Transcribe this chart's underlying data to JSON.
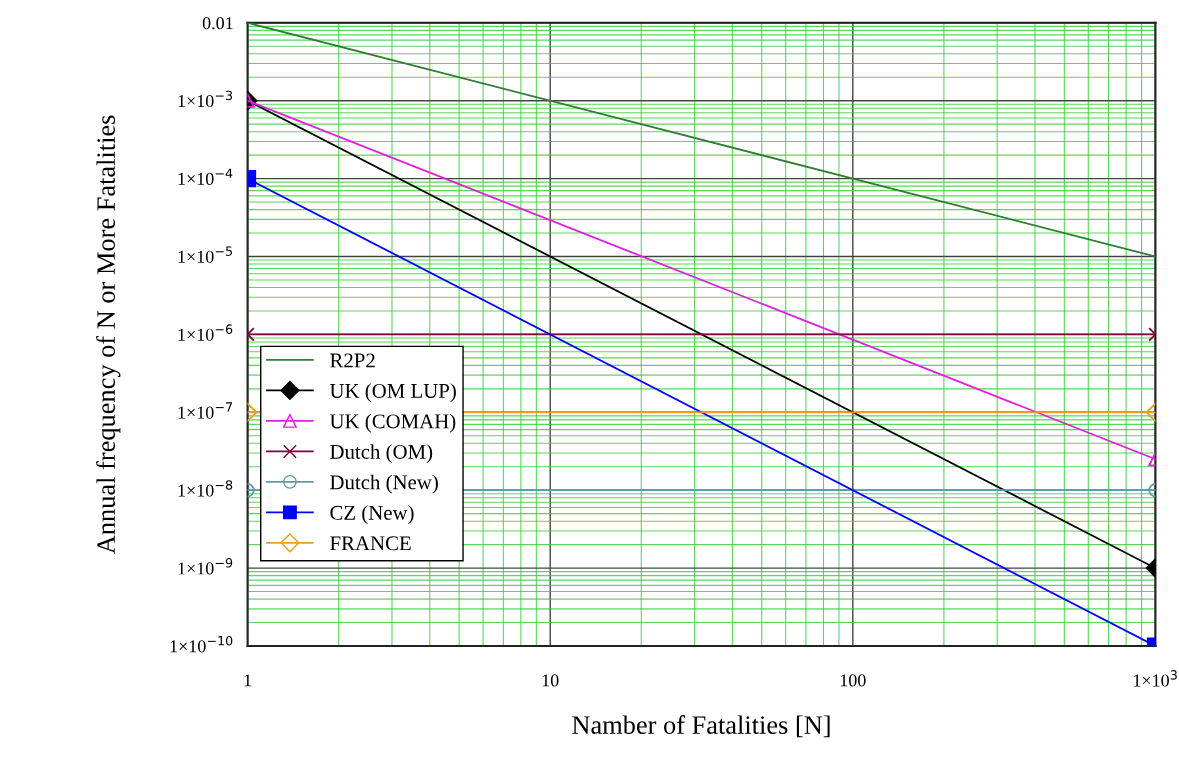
{
  "chart_data": {
    "type": "line",
    "xlabel": "Namber of Fatalities [N]",
    "ylabel": "Annual frequency of N or More Fatalities",
    "x": [
      1,
      1000
    ],
    "log": "xy",
    "grid": true,
    "legend": "lower left",
    "xlim": [
      1,
      1000
    ],
    "xticks": [
      1,
      {
        "value": 2,
        "label": null
      },
      {
        "value": 3,
        "label": null
      },
      {
        "value": 4,
        "label": null
      },
      {
        "value": 5,
        "label": null
      },
      {
        "value": 6,
        "label": null
      },
      {
        "value": 7,
        "label": null
      },
      {
        "value": 8,
        "label": null
      },
      {
        "value": 9,
        "label": null
      },
      10,
      {
        "value": 20,
        "label": null
      },
      {
        "value": 30,
        "label": null
      },
      {
        "value": 40,
        "label": null
      },
      {
        "value": 50,
        "label": null
      },
      {
        "value": 60,
        "label": null
      },
      {
        "value": 70,
        "label": null
      },
      {
        "value": 80,
        "label": null
      },
      {
        "value": 90,
        "label": null
      },
      100,
      {
        "value": 200,
        "label": null
      },
      {
        "value": 300,
        "label": null
      },
      {
        "value": 400,
        "label": null
      },
      {
        "value": 500,
        "label": null
      },
      {
        "value": 600,
        "label": null
      },
      {
        "value": 700,
        "label": null
      },
      {
        "value": 800,
        "label": null
      },
      {
        "value": 900,
        "label": null
      },
      {
        "value": 1000,
        "label": "1×10$^{3}$"
      }
    ],
    "ylim": [
      1e-10,
      0.01
    ],
    "yticks": [
      {
        "value": 1e-10,
        "label": "1×10$^{−10}$"
      },
      {
        "value": 2e-10,
        "label": null
      },
      {
        "value": 3e-10,
        "label": null
      },
      {
        "value": 4e-10,
        "label": null
      },
      {
        "value": 5e-10,
        "label": null
      },
      {
        "value": 6e-10,
        "label": null
      },
      {
        "value": 7e-10,
        "label": null
      },
      {
        "value": 8e-10,
        "label": null
      },
      {
        "value": 9e-10,
        "label": null
      },
      {
        "value": 1e-09,
        "label": "1×10$^{−9}$"
      },
      {
        "value": 2e-09,
        "label": null
      },
      {
        "value": 3e-09,
        "label": null
      },
      {
        "value": 4e-09,
        "label": null
      },
      {
        "value": 5e-09,
        "label": null
      },
      {
        "value": 6e-09,
        "label": null
      },
      {
        "value": 7e-09,
        "label": null
      },
      {
        "value": 8e-09,
        "label": null
      },
      {
        "value": 9e-09,
        "label": null
      },
      {
        "value": 1e-08,
        "label": "1×10$^{−8}$"
      },
      {
        "value": 2e-08,
        "label": null
      },
      {
        "value": 3e-08,
        "label": null
      },
      {
        "value": 4e-08,
        "label": null
      },
      {
        "value": 5e-08,
        "label": null
      },
      {
        "value": 6e-08,
        "label": null
      },
      {
        "value": 7e-08,
        "label": null
      },
      {
        "value": 8e-08,
        "label": null
      },
      {
        "value": 9e-08,
        "label": null
      },
      {
        "value": 1e-07,
        "label": "1×10$^{−7}$"
      },
      {
        "value": 2e-07,
        "label": null
      },
      {
        "value": 3e-07,
        "label": null
      },
      {
        "value": 4e-07,
        "label": null
      },
      {
        "value": 5e-07,
        "label": null
      },
      {
        "value": 6e-07,
        "label": null
      },
      {
        "value": 7e-07,
        "label": null
      },
      {
        "value": 8e-07,
        "label": null
      },
      {
        "value": 9e-07,
        "label": null
      },
      {
        "value": 1e-06,
        "label": "1×10$^{−6}$"
      },
      {
        "value": 2e-06,
        "label": null
      },
      {
        "value": 3e-06,
        "label": null
      },
      {
        "value": 4e-06,
        "label": null
      },
      {
        "value": 5e-06,
        "label": null
      },
      {
        "value": 6e-06,
        "label": null
      },
      {
        "value": 7e-06,
        "label": null
      },
      {
        "value": 8e-06,
        "label": null
      },
      {
        "value": 9e-06,
        "label": null
      },
      {
        "value": 1e-05,
        "label": "1×10$^{−5}$"
      },
      {
        "value": 2e-05,
        "label": null
      },
      {
        "value": 3e-05,
        "label": null
      },
      {
        "value": 4e-05,
        "label": null
      },
      {
        "value": 5e-05,
        "label": null
      },
      {
        "value": 6e-05,
        "label": null
      },
      {
        "value": 7e-05,
        "label": null
      },
      {
        "value": 8e-05,
        "label": null
      },
      {
        "value": 9e-05,
        "label": null
      },
      {
        "value": 0.0001,
        "label": "1×10$^{−4}$"
      },
      {
        "value": 0.0002,
        "label": null
      },
      {
        "value": 0.0003,
        "label": null
      },
      {
        "value": 0.0004,
        "label": null
      },
      {
        "value": 0.0005,
        "label": null
      },
      {
        "value": 0.0006,
        "label": null
      },
      {
        "value": 0.0007,
        "label": null
      },
      {
        "value": 0.0008,
        "label": null
      },
      {
        "value": 0.0009,
        "label": null
      },
      {
        "value": 0.001,
        "label": "1×10$^{−3}$"
      },
      {
        "value": 0.002,
        "label": null
      },
      {
        "value": 0.003,
        "label": null
      },
      {
        "value": 0.004,
        "label": null
      },
      {
        "value": 0.005,
        "label": null
      },
      {
        "value": 0.006,
        "label": null
      },
      {
        "value": 0.007,
        "label": null
      },
      {
        "value": 0.008,
        "label": null
      },
      {
        "value": 0.009,
        "label": null
      },
      0.01
    ],
    "series": [
      {
        "name": "R2P2",
        "color": "#2e7d32",
        "values": [
          0.01,
          1e-05
        ],
        "marker": "none"
      },
      {
        "name": "UK (OM LUP)",
        "color": "#000000",
        "values": [
          0.001,
          1e-09
        ],
        "marker": "diamond"
      },
      {
        "name": "UK (COMAH)",
        "color": "#e020e0",
        "values": [
          0.001,
          2.5e-08
        ],
        "marker": "triangle"
      },
      {
        "name": "Dutch (OM)",
        "color": "#800040",
        "values": [
          1e-06,
          1e-06
        ],
        "marker": "cross"
      },
      {
        "name": "Dutch (New)",
        "color": "#5f9ea0",
        "values": [
          1e-08,
          1e-08
        ],
        "marker": "circle"
      },
      {
        "name": "CZ (New)",
        "color": "#0000ff",
        "values": [
          0.0001,
          1e-10
        ],
        "marker": "square"
      },
      {
        "name": "FRANCE",
        "color": "#e8a020",
        "values": [
          1e-07,
          1e-07
        ],
        "marker": "diamond"
      }
    ]
  }
}
